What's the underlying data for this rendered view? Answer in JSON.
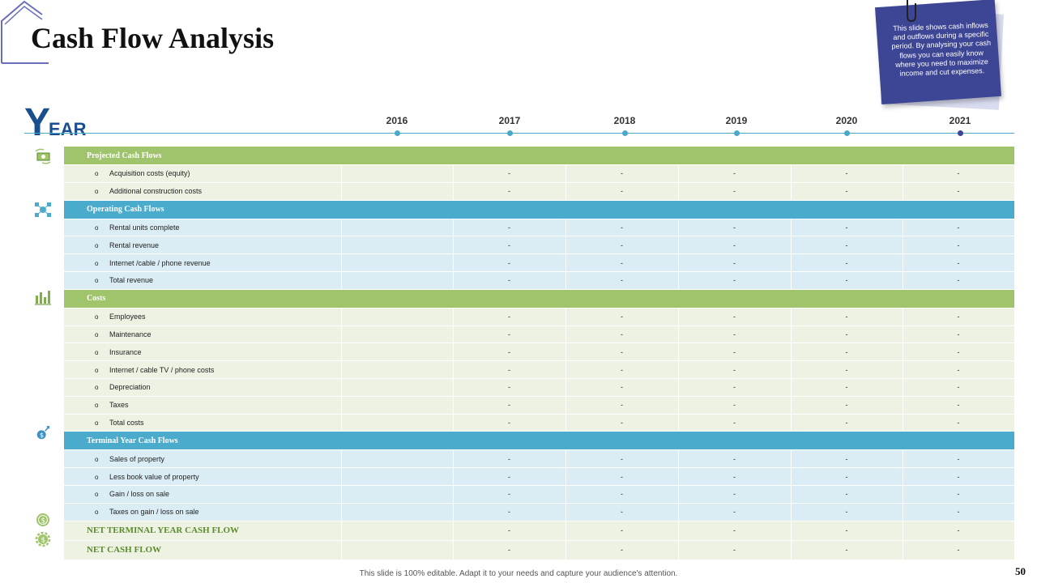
{
  "title": "Cash Flow Analysis",
  "note": "This slide shows cash inflows and outflows during a specific period. By analysing your cash flows you can easily know where you need to maximize income and cut expenses.",
  "year_label": {
    "big": "Y",
    "rest": "EAR"
  },
  "years": [
    "2016",
    "2017",
    "2018",
    "2019",
    "2020",
    "2021"
  ],
  "dash": "-",
  "bullet": "o",
  "sections": [
    {
      "header": "Projected Cash Flows",
      "items": [
        "Acquisition costs (equity)",
        "Additional construction costs"
      ]
    },
    {
      "header": "Operating Cash Flows",
      "items": [
        "Rental units complete",
        "Rental revenue",
        "Internet /cable / phone revenue",
        "Total revenue"
      ]
    },
    {
      "header": "Costs",
      "items": [
        "Employees",
        "Maintenance",
        "Insurance",
        "Internet / cable TV / phone costs",
        "Depreciation",
        "Taxes",
        "Total costs"
      ]
    },
    {
      "header": "Terminal Year Cash Flows",
      "items": [
        "Sales of property",
        "Less book value of property",
        "Gain / loss on sale",
        "Taxes on gain / loss on sale"
      ]
    }
  ],
  "net_rows": [
    "NET TERMINAL YEAR CASH FLOW",
    "NET CASH FLOW"
  ],
  "footer": "This slide is 100% editable. Adapt it to your needs and capture your audience's attention.",
  "page_number": "50",
  "colors": {
    "green": "#9fc46b",
    "blue": "#4aabcc",
    "navy": "#3d4595",
    "title_blue": "#1a4f8f"
  }
}
